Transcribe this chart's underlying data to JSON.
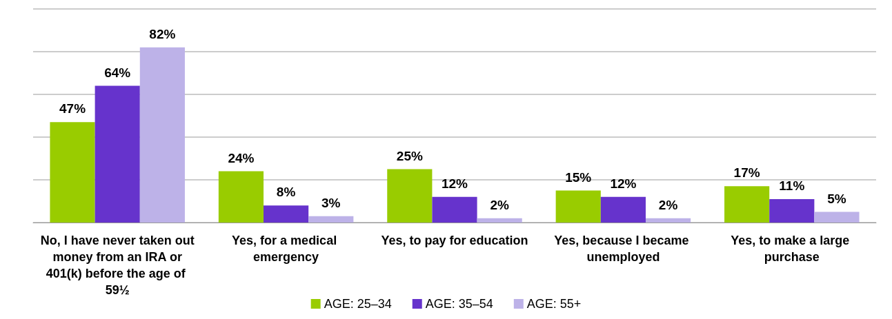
{
  "chart_data": {
    "type": "bar",
    "categories": [
      "No, I have never taken out money from an IRA or 401(k) before the age of 59½",
      "Yes, for a medical emergency",
      "Yes, to pay for education",
      "Yes, because I became unemployed",
      "Yes, to make a large purchase"
    ],
    "series": [
      {
        "name": "AGE: 25–34",
        "color": "#99cc00",
        "values": [
          47,
          24,
          25,
          15,
          17
        ],
        "value_labels": [
          "47%",
          "24%",
          "25%",
          "15%",
          "17%"
        ]
      },
      {
        "name": "AGE: 35–54",
        "color": "#6633cc",
        "values": [
          64,
          8,
          12,
          12,
          11
        ],
        "value_labels": [
          "64%",
          "8%",
          "12%",
          "12%",
          "11%"
        ]
      },
      {
        "name": "AGE: 55+",
        "color": "#bdb2e8",
        "values": [
          82,
          3,
          2,
          2,
          5
        ],
        "value_labels": [
          "82%",
          "3%",
          "2%",
          "2%",
          "5%"
        ]
      }
    ],
    "tick_labels": "x",
    "grid": "y",
    "legend": "bottom"
  }
}
